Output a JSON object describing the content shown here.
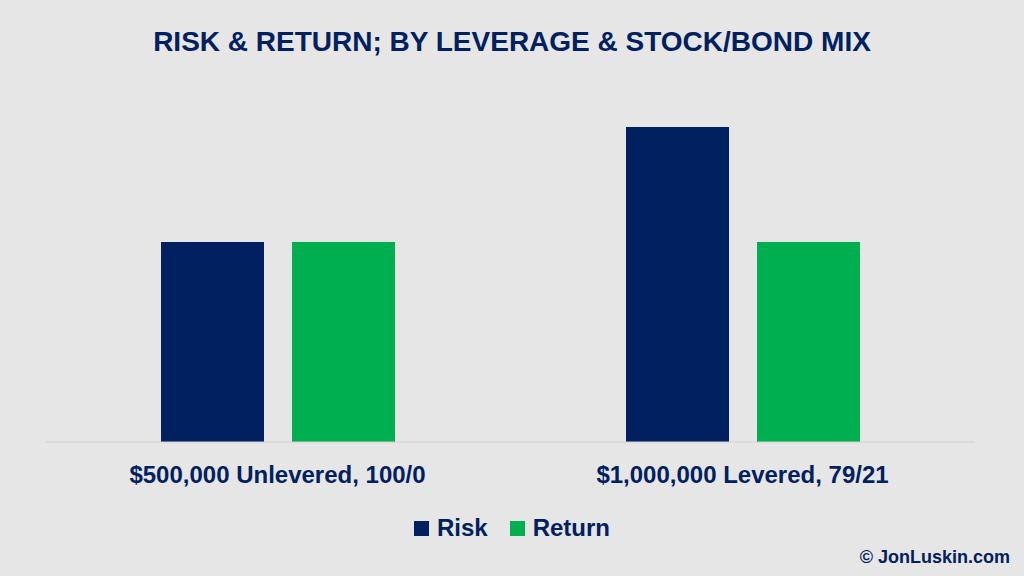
{
  "chart_data": {
    "type": "bar",
    "title": "RISK & RETURN; BY LEVERAGE & STOCK/BOND MIX",
    "categories": [
      "$500,000 Unlevered, 100/0",
      "$1,000,000 Levered, 79/21"
    ],
    "series": [
      {
        "name": "Risk",
        "color": "#002060",
        "values": [
          10,
          15.75
        ]
      },
      {
        "name": "Return",
        "color": "#00B050",
        "values": [
          10,
          10
        ]
      }
    ],
    "ylim": [
      0,
      16
    ],
    "yticks": [
      0,
      16
    ],
    "tick_labels": "x",
    "grid": false,
    "legend": "bottom",
    "annotations": [
      "© JonLuskin.com"
    ]
  }
}
